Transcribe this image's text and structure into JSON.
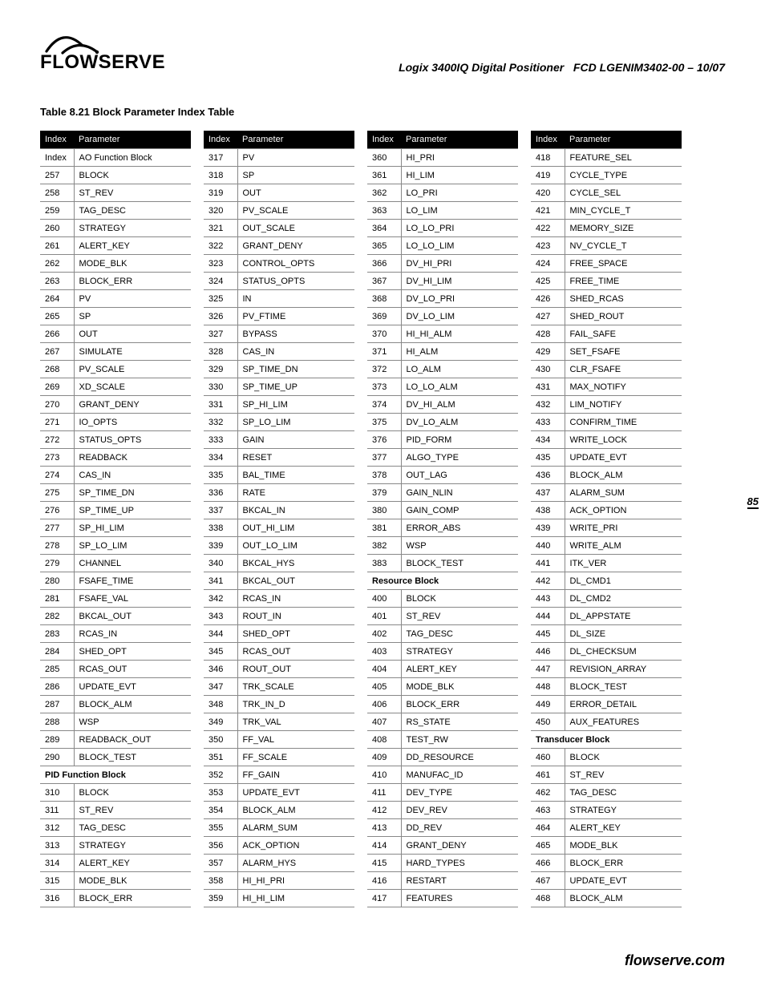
{
  "header": {
    "logo_text": "FLOWSERVE",
    "product": "Logix 3400IQ Digital Positioner",
    "doc_id": "FCD LGENIM3402-00 – 10/07"
  },
  "table_title": "Table 8.21 Block Parameter Index Table",
  "col_headers": {
    "index": "Index",
    "parameter": "Parameter"
  },
  "page_number": "85",
  "footer": "flowserve.com",
  "columns": [
    [
      {
        "section": true,
        "index": "Index",
        "param": "AO Function Block"
      },
      {
        "index": "257",
        "param": "BLOCK"
      },
      {
        "index": "258",
        "param": "ST_REV"
      },
      {
        "index": "259",
        "param": "TAG_DESC"
      },
      {
        "index": "260",
        "param": "STRATEGY"
      },
      {
        "index": "261",
        "param": "ALERT_KEY"
      },
      {
        "index": "262",
        "param": "MODE_BLK"
      },
      {
        "index": "263",
        "param": "BLOCK_ERR"
      },
      {
        "index": "264",
        "param": "PV"
      },
      {
        "index": "265",
        "param": "SP"
      },
      {
        "index": "266",
        "param": "OUT"
      },
      {
        "index": "267",
        "param": "SIMULATE"
      },
      {
        "index": "268",
        "param": "PV_SCALE"
      },
      {
        "index": "269",
        "param": "XD_SCALE"
      },
      {
        "index": "270",
        "param": "GRANT_DENY"
      },
      {
        "index": "271",
        "param": "IO_OPTS"
      },
      {
        "index": "272",
        "param": "STATUS_OPTS"
      },
      {
        "index": "273",
        "param": "READBACK"
      },
      {
        "index": "274",
        "param": "CAS_IN"
      },
      {
        "index": "275",
        "param": "SP_TIME_DN"
      },
      {
        "index": "276",
        "param": "SP_TIME_UP"
      },
      {
        "index": "277",
        "param": "SP_HI_LIM"
      },
      {
        "index": "278",
        "param": "SP_LO_LIM"
      },
      {
        "index": "279",
        "param": "CHANNEL"
      },
      {
        "index": "280",
        "param": "FSAFE_TIME"
      },
      {
        "index": "281",
        "param": "FSAFE_VAL"
      },
      {
        "index": "282",
        "param": "BKCAL_OUT"
      },
      {
        "index": "283",
        "param": "RCAS_IN"
      },
      {
        "index": "284",
        "param": "SHED_OPT"
      },
      {
        "index": "285",
        "param": "RCAS_OUT"
      },
      {
        "index": "286",
        "param": "UPDATE_EVT"
      },
      {
        "index": "287",
        "param": "BLOCK_ALM"
      },
      {
        "index": "288",
        "param": "WSP"
      },
      {
        "index": "289",
        "param": "READBACK_OUT"
      },
      {
        "index": "290",
        "param": "BLOCK_TEST"
      },
      {
        "section": true,
        "index": "",
        "param": "PID Function Block",
        "merged": true
      },
      {
        "index": "310",
        "param": "BLOCK"
      },
      {
        "index": "311",
        "param": "ST_REV"
      },
      {
        "index": "312",
        "param": "TAG_DESC"
      },
      {
        "index": "313",
        "param": "STRATEGY"
      },
      {
        "index": "314",
        "param": "ALERT_KEY"
      },
      {
        "index": "315",
        "param": "MODE_BLK"
      },
      {
        "index": "316",
        "param": "BLOCK_ERR"
      }
    ],
    [
      {
        "index": "317",
        "param": "PV"
      },
      {
        "index": "318",
        "param": "SP"
      },
      {
        "index": "319",
        "param": "OUT"
      },
      {
        "index": "320",
        "param": "PV_SCALE"
      },
      {
        "index": "321",
        "param": "OUT_SCALE"
      },
      {
        "index": "322",
        "param": "GRANT_DENY"
      },
      {
        "index": "323",
        "param": "CONTROL_OPTS"
      },
      {
        "index": "324",
        "param": "STATUS_OPTS"
      },
      {
        "index": "325",
        "param": "IN"
      },
      {
        "index": "326",
        "param": "PV_FTIME"
      },
      {
        "index": "327",
        "param": "BYPASS"
      },
      {
        "index": "328",
        "param": "CAS_IN"
      },
      {
        "index": "329",
        "param": "SP_TIME_DN"
      },
      {
        "index": "330",
        "param": "SP_TIME_UP"
      },
      {
        "index": "331",
        "param": "SP_HI_LIM"
      },
      {
        "index": "332",
        "param": "SP_LO_LIM"
      },
      {
        "index": "333",
        "param": "GAIN"
      },
      {
        "index": "334",
        "param": "RESET"
      },
      {
        "index": "335",
        "param": "BAL_TIME"
      },
      {
        "index": "336",
        "param": "RATE"
      },
      {
        "index": "337",
        "param": "BKCAL_IN"
      },
      {
        "index": "338",
        "param": "OUT_HI_LIM"
      },
      {
        "index": "339",
        "param": "OUT_LO_LIM"
      },
      {
        "index": "340",
        "param": "BKCAL_HYS"
      },
      {
        "index": "341",
        "param": "BKCAL_OUT"
      },
      {
        "index": "342",
        "param": "RCAS_IN"
      },
      {
        "index": "343",
        "param": "ROUT_IN"
      },
      {
        "index": "344",
        "param": "SHED_OPT"
      },
      {
        "index": "345",
        "param": "RCAS_OUT"
      },
      {
        "index": "346",
        "param": "ROUT_OUT"
      },
      {
        "index": "347",
        "param": "TRK_SCALE"
      },
      {
        "index": "348",
        "param": "TRK_IN_D"
      },
      {
        "index": "349",
        "param": "TRK_VAL"
      },
      {
        "index": "350",
        "param": "FF_VAL"
      },
      {
        "index": "351",
        "param": "FF_SCALE"
      },
      {
        "index": "352",
        "param": "FF_GAIN"
      },
      {
        "index": "353",
        "param": "UPDATE_EVT"
      },
      {
        "index": "354",
        "param": "BLOCK_ALM"
      },
      {
        "index": "355",
        "param": "ALARM_SUM"
      },
      {
        "index": "356",
        "param": "ACK_OPTION"
      },
      {
        "index": "357",
        "param": "ALARM_HYS"
      },
      {
        "index": "358",
        "param": "HI_HI_PRI"
      },
      {
        "index": "359",
        "param": "HI_HI_LIM"
      }
    ],
    [
      {
        "index": "360",
        "param": "HI_PRI"
      },
      {
        "index": "361",
        "param": "HI_LIM"
      },
      {
        "index": "362",
        "param": "LO_PRI"
      },
      {
        "index": "363",
        "param": "LO_LIM"
      },
      {
        "index": "364",
        "param": "LO_LO_PRI"
      },
      {
        "index": "365",
        "param": "LO_LO_LIM"
      },
      {
        "index": "366",
        "param": "DV_HI_PRI"
      },
      {
        "index": "367",
        "param": "DV_HI_LIM"
      },
      {
        "index": "368",
        "param": "DV_LO_PRI"
      },
      {
        "index": "369",
        "param": "DV_LO_LIM"
      },
      {
        "index": "370",
        "param": "HI_HI_ALM"
      },
      {
        "index": "371",
        "param": "HI_ALM"
      },
      {
        "index": "372",
        "param": "LO_ALM"
      },
      {
        "index": "373",
        "param": "LO_LO_ALM"
      },
      {
        "index": "374",
        "param": "DV_HI_ALM"
      },
      {
        "index": "375",
        "param": "DV_LO_ALM"
      },
      {
        "index": "376",
        "param": "PID_FORM"
      },
      {
        "index": "377",
        "param": "ALGO_TYPE"
      },
      {
        "index": "378",
        "param": "OUT_LAG"
      },
      {
        "index": "379",
        "param": "GAIN_NLIN"
      },
      {
        "index": "380",
        "param": "GAIN_COMP"
      },
      {
        "index": "381",
        "param": "ERROR_ABS"
      },
      {
        "index": "382",
        "param": "WSP"
      },
      {
        "index": "383",
        "param": "BLOCK_TEST"
      },
      {
        "section": true,
        "index": "",
        "param": "Resource Block",
        "merged": true
      },
      {
        "index": "400",
        "param": "BLOCK"
      },
      {
        "index": "401",
        "param": "ST_REV"
      },
      {
        "index": "402",
        "param": "TAG_DESC"
      },
      {
        "index": "403",
        "param": "STRATEGY"
      },
      {
        "index": "404",
        "param": "ALERT_KEY"
      },
      {
        "index": "405",
        "param": "MODE_BLK"
      },
      {
        "index": "406",
        "param": "BLOCK_ERR"
      },
      {
        "index": "407",
        "param": "RS_STATE"
      },
      {
        "index": "408",
        "param": "TEST_RW"
      },
      {
        "index": "409",
        "param": "DD_RESOURCE"
      },
      {
        "index": "410",
        "param": "MANUFAC_ID"
      },
      {
        "index": "411",
        "param": "DEV_TYPE"
      },
      {
        "index": "412",
        "param": "DEV_REV"
      },
      {
        "index": "413",
        "param": "DD_REV"
      },
      {
        "index": "414",
        "param": "GRANT_DENY"
      },
      {
        "index": "415",
        "param": "HARD_TYPES"
      },
      {
        "index": "416",
        "param": "RESTART"
      },
      {
        "index": "417",
        "param": "FEATURES"
      }
    ],
    [
      {
        "index": "418",
        "param": "FEATURE_SEL"
      },
      {
        "index": "419",
        "param": "CYCLE_TYPE"
      },
      {
        "index": "420",
        "param": "CYCLE_SEL"
      },
      {
        "index": "421",
        "param": "MIN_CYCLE_T"
      },
      {
        "index": "422",
        "param": "MEMORY_SIZE"
      },
      {
        "index": "423",
        "param": "NV_CYCLE_T"
      },
      {
        "index": "424",
        "param": "FREE_SPACE"
      },
      {
        "index": "425",
        "param": "FREE_TIME"
      },
      {
        "index": "426",
        "param": "SHED_RCAS"
      },
      {
        "index": "427",
        "param": "SHED_ROUT"
      },
      {
        "index": "428",
        "param": "FAIL_SAFE"
      },
      {
        "index": "429",
        "param": "SET_FSAFE"
      },
      {
        "index": "430",
        "param": "CLR_FSAFE"
      },
      {
        "index": "431",
        "param": "MAX_NOTIFY"
      },
      {
        "index": "432",
        "param": "LIM_NOTIFY"
      },
      {
        "index": "433",
        "param": "CONFIRM_TIME"
      },
      {
        "index": "434",
        "param": "WRITE_LOCK"
      },
      {
        "index": "435",
        "param": "UPDATE_EVT"
      },
      {
        "index": "436",
        "param": "BLOCK_ALM"
      },
      {
        "index": "437",
        "param": "ALARM_SUM"
      },
      {
        "index": "438",
        "param": "ACK_OPTION"
      },
      {
        "index": "439",
        "param": "WRITE_PRI"
      },
      {
        "index": "440",
        "param": "WRITE_ALM"
      },
      {
        "index": "441",
        "param": "ITK_VER"
      },
      {
        "index": "442",
        "param": "DL_CMD1"
      },
      {
        "index": "443",
        "param": "DL_CMD2"
      },
      {
        "index": "444",
        "param": "DL_APPSTATE"
      },
      {
        "index": "445",
        "param": "DL_SIZE"
      },
      {
        "index": "446",
        "param": "DL_CHECKSUM"
      },
      {
        "index": "447",
        "param": "REVISION_ARRAY"
      },
      {
        "index": "448",
        "param": "BLOCK_TEST"
      },
      {
        "index": "449",
        "param": "ERROR_DETAIL"
      },
      {
        "index": "450",
        "param": "AUX_FEATURES"
      },
      {
        "section": true,
        "index": "",
        "param": "Transducer Block",
        "merged": true
      },
      {
        "index": "460",
        "param": "BLOCK"
      },
      {
        "index": "461",
        "param": "ST_REV"
      },
      {
        "index": "462",
        "param": "TAG_DESC"
      },
      {
        "index": "463",
        "param": "STRATEGY"
      },
      {
        "index": "464",
        "param": "ALERT_KEY"
      },
      {
        "index": "465",
        "param": "MODE_BLK"
      },
      {
        "index": "466",
        "param": "BLOCK_ERR"
      },
      {
        "index": "467",
        "param": "UPDATE_EVT"
      },
      {
        "index": "468",
        "param": "BLOCK_ALM"
      }
    ]
  ]
}
